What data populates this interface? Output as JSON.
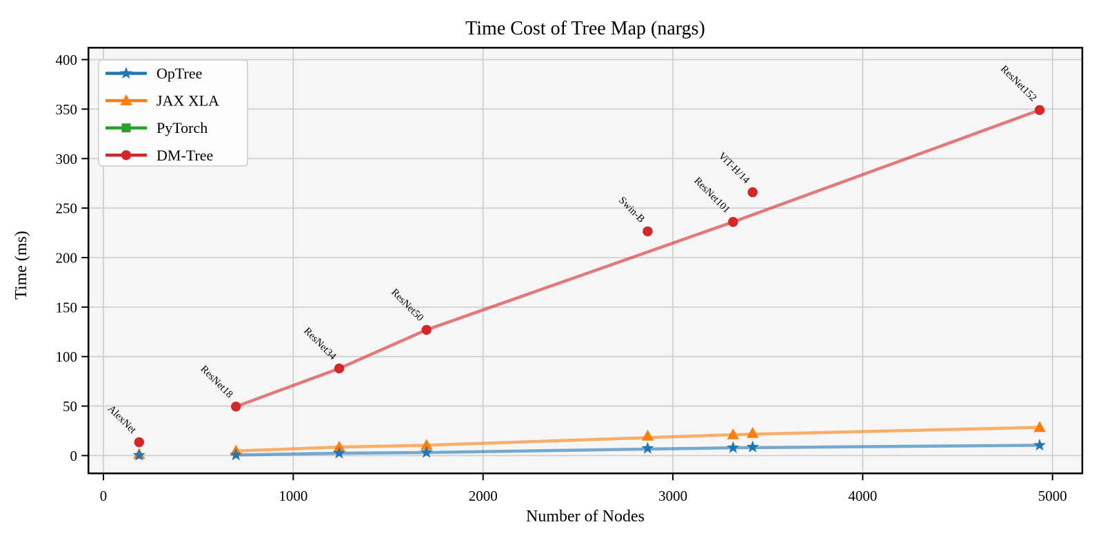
{
  "chart_data": {
    "type": "line",
    "title": "Time Cost of Tree Map (nargs)",
    "xlabel": "Number of Nodes",
    "ylabel": "Time (ms)",
    "x_ticks": [
      0,
      1000,
      2000,
      3000,
      4000,
      5000
    ],
    "y_ticks": [
      0,
      50,
      100,
      150,
      200,
      250,
      300,
      350,
      400
    ],
    "xlim": [
      -79,
      5157
    ],
    "ylim": [
      -18,
      412
    ],
    "grid": true,
    "legend_position": "upper left",
    "colors": {
      "figure_bg": "#ffffff",
      "axes_bg": "#f6f6f6",
      "grid": "#d0d0d0",
      "spine": "#000000",
      "legend_bg": "#fdfdfd",
      "legend_border": "#cccccc",
      "annotation_text": "#000000"
    },
    "models": [
      {
        "name": "AlexNet",
        "nodes": 188,
        "on_line": false
      },
      {
        "name": "ResNet18",
        "nodes": 698,
        "on_line": true
      },
      {
        "name": "ResNet34",
        "nodes": 1242,
        "on_line": true
      },
      {
        "name": "ResNet50",
        "nodes": 1702,
        "on_line": true
      },
      {
        "name": "Swin-B",
        "nodes": 2867,
        "on_line": false
      },
      {
        "name": "ResNet101",
        "nodes": 3317,
        "on_line": true
      },
      {
        "name": "ViT-H/14",
        "nodes": 3420,
        "on_line": false
      },
      {
        "name": "ResNet152",
        "nodes": 4932,
        "on_line": true
      }
    ],
    "series": [
      {
        "name": "OpTree",
        "color": "#1f77b4",
        "marker": "star",
        "values": [
          0.3,
          0.6,
          2.4,
          3.1,
          7.3,
          7.9,
          8.6,
          10.4
        ]
      },
      {
        "name": "JAX XLA",
        "color": "#ff7f0e",
        "marker": "triangle",
        "values": [
          1.3,
          4.6,
          8.6,
          10.4,
          19.8,
          21.1,
          22.6,
          28.5
        ]
      },
      {
        "name": "PyTorch",
        "color": "#2ca02c",
        "marker": "square",
        "values": []
      },
      {
        "name": "DM-Tree",
        "color": "#d62728",
        "marker": "circle",
        "values": [
          13.5,
          49.5,
          88.0,
          127.0,
          226.5,
          236.0,
          266.0,
          349.0
        ]
      }
    ],
    "annotation_series": "DM-Tree",
    "line_opacity": 0.6,
    "line_width": 4.5
  }
}
